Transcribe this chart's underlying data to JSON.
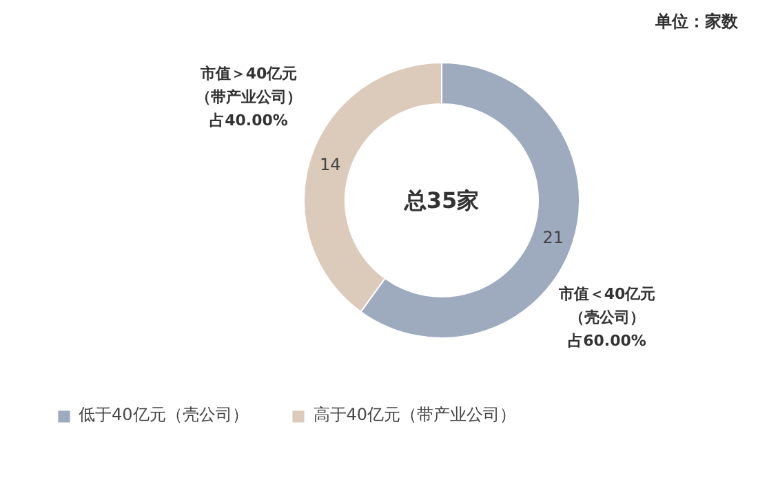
{
  "chart_data": {
    "type": "donut",
    "categories": [
      "低于40亿元（壳公司）",
      "高于40亿元（带产业公司）"
    ],
    "values": [
      21,
      14
    ],
    "colors": [
      "#9eabbf",
      "#dccbbb"
    ],
    "data_labels": true,
    "legend": "bottom",
    "annotations": [
      "单位：家数",
      "总35家",
      "市值＞40亿元",
      "（带产业公司）",
      "占40.00%",
      "市值＜40亿元",
      "（壳公司）",
      "占60.00%"
    ]
  }
}
